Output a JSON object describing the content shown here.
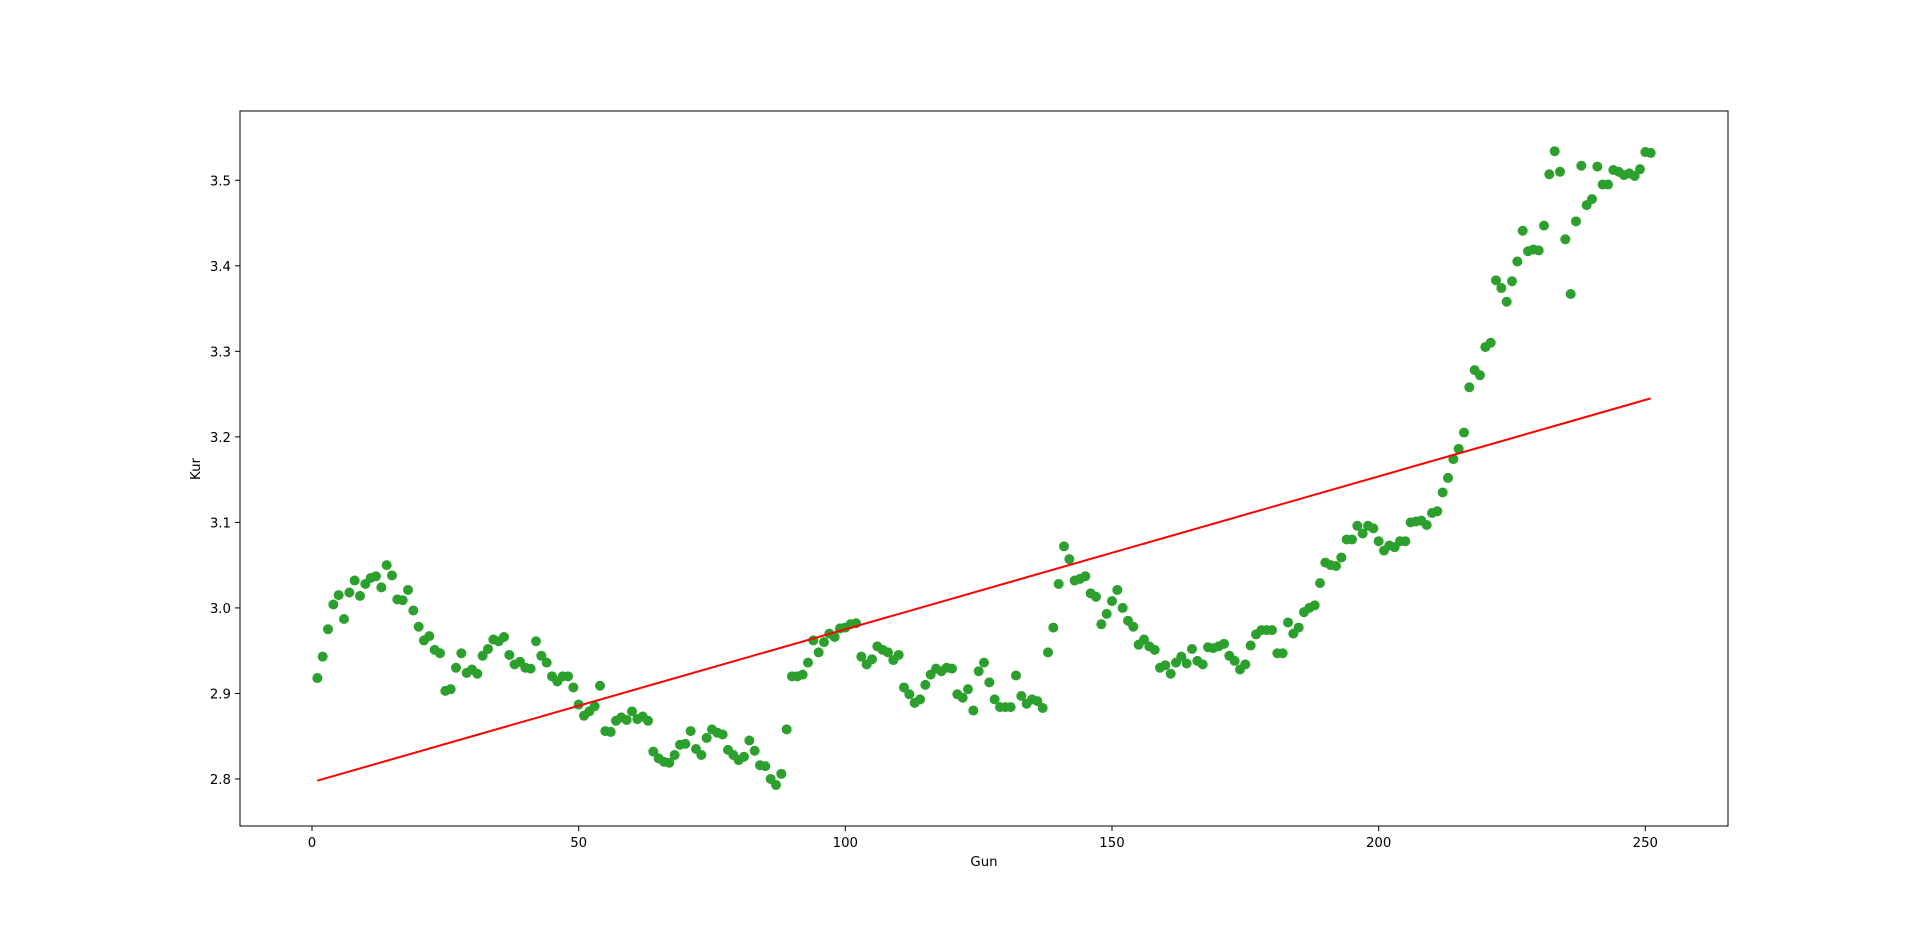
{
  "chart_data": {
    "type": "scatter",
    "xlabel": "Gun",
    "ylabel": "Kur",
    "xlim": [
      -13.5,
      265.5
    ],
    "ylim": [
      2.745,
      3.581
    ],
    "xticks": [
      0,
      50,
      100,
      150,
      200,
      250
    ],
    "yticks": [
      2.8,
      2.9,
      3.0,
      3.1,
      3.2,
      3.3,
      3.4,
      3.5
    ],
    "xtick_labels": [
      "0",
      "50",
      "100",
      "150",
      "200",
      "250"
    ],
    "ytick_labels": [
      "2.8",
      "2.9",
      "3.0",
      "3.1",
      "3.2",
      "3.3",
      "3.4",
      "3.5"
    ],
    "grid": false,
    "scatter_color": "#2ca02c",
    "line_color": "#ff0000",
    "trend_line": {
      "x": [
        1,
        251
      ],
      "y": [
        2.798,
        3.245
      ]
    },
    "points": [
      [
        1,
        2.918
      ],
      [
        2,
        2.943
      ],
      [
        3,
        2.975
      ],
      [
        4,
        3.004
      ],
      [
        5,
        3.015
      ],
      [
        6,
        2.987
      ],
      [
        7,
        3.018
      ],
      [
        8,
        3.032
      ],
      [
        9,
        3.014
      ],
      [
        10,
        3.028
      ],
      [
        11,
        3.035
      ],
      [
        12,
        3.037
      ],
      [
        13,
        3.024
      ],
      [
        14,
        3.05
      ],
      [
        15,
        3.038
      ],
      [
        16,
        3.01
      ],
      [
        17,
        3.009
      ],
      [
        18,
        3.021
      ],
      [
        19,
        2.997
      ],
      [
        20,
        2.978
      ],
      [
        21,
        2.962
      ],
      [
        22,
        2.967
      ],
      [
        23,
        2.951
      ],
      [
        24,
        2.947
      ],
      [
        25,
        2.903
      ],
      [
        26,
        2.905
      ],
      [
        27,
        2.93
      ],
      [
        28,
        2.947
      ],
      [
        29,
        2.924
      ],
      [
        30,
        2.928
      ],
      [
        31,
        2.923
      ],
      [
        32,
        2.944
      ],
      [
        33,
        2.952
      ],
      [
        34,
        2.963
      ],
      [
        35,
        2.961
      ],
      [
        36,
        2.966
      ],
      [
        37,
        2.945
      ],
      [
        38,
        2.934
      ],
      [
        39,
        2.937
      ],
      [
        40,
        2.93
      ],
      [
        41,
        2.929
      ],
      [
        42,
        2.961
      ],
      [
        43,
        2.944
      ],
      [
        44,
        2.936
      ],
      [
        45,
        2.92
      ],
      [
        46,
        2.914
      ],
      [
        47,
        2.92
      ],
      [
        48,
        2.92
      ],
      [
        49,
        2.907
      ],
      [
        50,
        2.887
      ],
      [
        51,
        2.874
      ],
      [
        52,
        2.879
      ],
      [
        53,
        2.885
      ],
      [
        54,
        2.909
      ],
      [
        55,
        2.856
      ],
      [
        56,
        2.855
      ],
      [
        57,
        2.868
      ],
      [
        58,
        2.872
      ],
      [
        59,
        2.869
      ],
      [
        60,
        2.879
      ],
      [
        61,
        2.87
      ],
      [
        62,
        2.873
      ],
      [
        63,
        2.868
      ],
      [
        64,
        2.832
      ],
      [
        65,
        2.824
      ],
      [
        66,
        2.82
      ],
      [
        67,
        2.819
      ],
      [
        68,
        2.828
      ],
      [
        69,
        2.84
      ],
      [
        70,
        2.841
      ],
      [
        71,
        2.856
      ],
      [
        72,
        2.835
      ],
      [
        73,
        2.828
      ],
      [
        74,
        2.848
      ],
      [
        75,
        2.858
      ],
      [
        76,
        2.854
      ],
      [
        77,
        2.852
      ],
      [
        78,
        2.834
      ],
      [
        79,
        2.828
      ],
      [
        80,
        2.822
      ],
      [
        81,
        2.826
      ],
      [
        82,
        2.845
      ],
      [
        83,
        2.833
      ],
      [
        84,
        2.816
      ],
      [
        85,
        2.815
      ],
      [
        86,
        2.8
      ],
      [
        87,
        2.793
      ],
      [
        88,
        2.806
      ],
      [
        89,
        2.858
      ],
      [
        90,
        2.92
      ],
      [
        91,
        2.92
      ],
      [
        92,
        2.922
      ],
      [
        93,
        2.936
      ],
      [
        94,
        2.962
      ],
      [
        95,
        2.948
      ],
      [
        96,
        2.96
      ],
      [
        97,
        2.97
      ],
      [
        98,
        2.966
      ],
      [
        99,
        2.976
      ],
      [
        100,
        2.977
      ],
      [
        101,
        2.981
      ],
      [
        102,
        2.982
      ],
      [
        103,
        2.943
      ],
      [
        104,
        2.934
      ],
      [
        105,
        2.94
      ],
      [
        106,
        2.955
      ],
      [
        107,
        2.951
      ],
      [
        108,
        2.948
      ],
      [
        109,
        2.939
      ],
      [
        110,
        2.945
      ],
      [
        111,
        2.907
      ],
      [
        112,
        2.899
      ],
      [
        113,
        2.889
      ],
      [
        114,
        2.893
      ],
      [
        115,
        2.91
      ],
      [
        116,
        2.922
      ],
      [
        117,
        2.929
      ],
      [
        118,
        2.926
      ],
      [
        119,
        2.93
      ],
      [
        120,
        2.929
      ],
      [
        121,
        2.899
      ],
      [
        122,
        2.895
      ],
      [
        123,
        2.905
      ],
      [
        124,
        2.88
      ],
      [
        125,
        2.926
      ],
      [
        126,
        2.936
      ],
      [
        127,
        2.913
      ],
      [
        128,
        2.893
      ],
      [
        129,
        2.884
      ],
      [
        130,
        2.884
      ],
      [
        131,
        2.884
      ],
      [
        132,
        2.921
      ],
      [
        133,
        2.897
      ],
      [
        134,
        2.888
      ],
      [
        135,
        2.893
      ],
      [
        136,
        2.891
      ],
      [
        137,
        2.883
      ],
      [
        138,
        2.948
      ],
      [
        139,
        2.977
      ],
      [
        140,
        3.028
      ],
      [
        141,
        3.072
      ],
      [
        142,
        3.057
      ],
      [
        143,
        3.032
      ],
      [
        144,
        3.034
      ],
      [
        145,
        3.037
      ],
      [
        146,
        3.017
      ],
      [
        147,
        3.013
      ],
      [
        148,
        2.981
      ],
      [
        149,
        2.993
      ],
      [
        150,
        3.008
      ],
      [
        151,
        3.021
      ],
      [
        152,
        3.0
      ],
      [
        153,
        2.985
      ],
      [
        154,
        2.978
      ],
      [
        155,
        2.957
      ],
      [
        156,
        2.963
      ],
      [
        157,
        2.955
      ],
      [
        158,
        2.951
      ],
      [
        159,
        2.93
      ],
      [
        160,
        2.933
      ],
      [
        161,
        2.923
      ],
      [
        162,
        2.936
      ],
      [
        163,
        2.943
      ],
      [
        164,
        2.935
      ],
      [
        165,
        2.952
      ],
      [
        166,
        2.938
      ],
      [
        167,
        2.934
      ],
      [
        168,
        2.954
      ],
      [
        169,
        2.953
      ],
      [
        170,
        2.955
      ],
      [
        171,
        2.958
      ],
      [
        172,
        2.944
      ],
      [
        173,
        2.938
      ],
      [
        174,
        2.928
      ],
      [
        175,
        2.934
      ],
      [
        176,
        2.956
      ],
      [
        177,
        2.969
      ],
      [
        178,
        2.974
      ],
      [
        179,
        2.974
      ],
      [
        180,
        2.974
      ],
      [
        181,
        2.947
      ],
      [
        182,
        2.947
      ],
      [
        183,
        2.983
      ],
      [
        184,
        2.97
      ],
      [
        185,
        2.977
      ],
      [
        186,
        2.995
      ],
      [
        187,
        3.0
      ],
      [
        188,
        3.003
      ],
      [
        189,
        3.029
      ],
      [
        190,
        3.053
      ],
      [
        191,
        3.05
      ],
      [
        192,
        3.049
      ],
      [
        193,
        3.059
      ],
      [
        194,
        3.08
      ],
      [
        195,
        3.08
      ],
      [
        196,
        3.096
      ],
      [
        197,
        3.087
      ],
      [
        198,
        3.096
      ],
      [
        199,
        3.093
      ],
      [
        200,
        3.078
      ],
      [
        201,
        3.067
      ],
      [
        202,
        3.073
      ],
      [
        203,
        3.071
      ],
      [
        204,
        3.078
      ],
      [
        205,
        3.078
      ],
      [
        206,
        3.1
      ],
      [
        207,
        3.101
      ],
      [
        208,
        3.102
      ],
      [
        209,
        3.097
      ],
      [
        210,
        3.111
      ],
      [
        211,
        3.113
      ],
      [
        212,
        3.135
      ],
      [
        213,
        3.152
      ],
      [
        214,
        3.174
      ],
      [
        215,
        3.186
      ],
      [
        216,
        3.205
      ],
      [
        217,
        3.258
      ],
      [
        218,
        3.278
      ],
      [
        219,
        3.272
      ],
      [
        220,
        3.305
      ],
      [
        221,
        3.31
      ],
      [
        222,
        3.383
      ],
      [
        223,
        3.374
      ],
      [
        224,
        3.358
      ],
      [
        225,
        3.382
      ],
      [
        226,
        3.405
      ],
      [
        227,
        3.441
      ],
      [
        228,
        3.417
      ],
      [
        229,
        3.419
      ],
      [
        230,
        3.418
      ],
      [
        231,
        3.447
      ],
      [
        232,
        3.507
      ],
      [
        233,
        3.534
      ],
      [
        234,
        3.51
      ],
      [
        235,
        3.431
      ],
      [
        236,
        3.367
      ],
      [
        237,
        3.452
      ],
      [
        238,
        3.517
      ],
      [
        239,
        3.471
      ],
      [
        240,
        3.478
      ],
      [
        241,
        3.516
      ],
      [
        242,
        3.495
      ],
      [
        243,
        3.495
      ],
      [
        244,
        3.512
      ],
      [
        245,
        3.51
      ],
      [
        246,
        3.506
      ],
      [
        247,
        3.508
      ],
      [
        248,
        3.505
      ],
      [
        249,
        3.513
      ],
      [
        250,
        3.533
      ],
      [
        251,
        3.532
      ]
    ]
  }
}
